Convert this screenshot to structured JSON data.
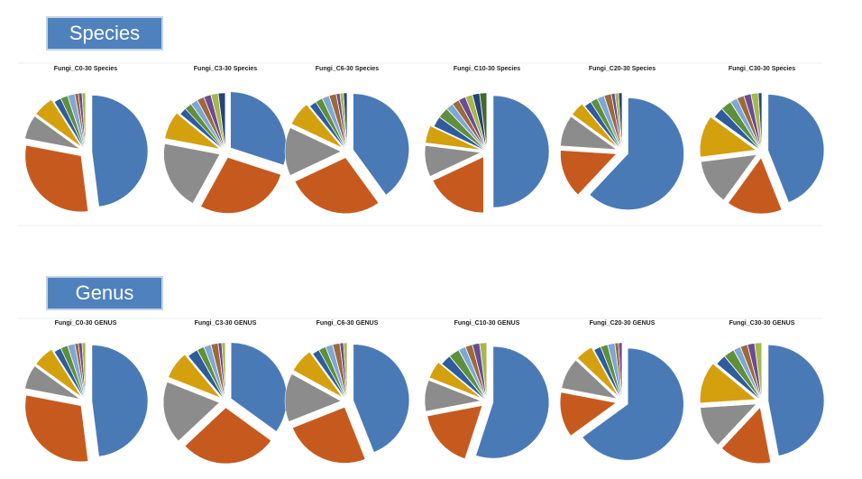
{
  "section_labels": [
    "Species",
    "Genus"
  ],
  "chart_data": [
    {
      "type": "pie",
      "title": "Fungi_C0-30 Species",
      "values": [
        48,
        30,
        7,
        6,
        2,
        2,
        2,
        1,
        1,
        1
      ],
      "colors": [
        "#4a7ab6",
        "#c65a1e",
        "#8c8c8c",
        "#d4a00e",
        "#2e5c9c",
        "#5f8f3a",
        "#7fa7d6",
        "#9c6a3a",
        "#6a4c93",
        "#a5b84b"
      ]
    },
    {
      "type": "pie",
      "title": "Fungi_C3-30 Species",
      "values": [
        30,
        28,
        20,
        8,
        2,
        2,
        2,
        2,
        2,
        2,
        2
      ],
      "colors": [
        "#4a7ab6",
        "#c65a1e",
        "#8c8c8c",
        "#d4a00e",
        "#2e5c9c",
        "#5f8f3a",
        "#7fa7d6",
        "#9c6a3a",
        "#6a4c93",
        "#a5b84b",
        "#264478"
      ]
    },
    {
      "type": "pie",
      "title": "Fungi_C6-30 Species",
      "values": [
        40,
        28,
        14,
        7,
        2,
        2,
        2,
        2,
        1,
        1,
        1
      ],
      "colors": [
        "#4a7ab6",
        "#c65a1e",
        "#8c8c8c",
        "#d4a00e",
        "#2e5c9c",
        "#5f8f3a",
        "#7fa7d6",
        "#9c6a3a",
        "#6a4c93",
        "#a5b84b",
        "#264478"
      ]
    },
    {
      "type": "pie",
      "title": "Fungi_C10-30 Species",
      "values": [
        50,
        18,
        9,
        5,
        3,
        3,
        2,
        2,
        2,
        2,
        2,
        2
      ],
      "colors": [
        "#4a7ab6",
        "#c65a1e",
        "#8c8c8c",
        "#d4a00e",
        "#2e5c9c",
        "#5f8f3a",
        "#7fa7d6",
        "#9c6a3a",
        "#6a4c93",
        "#a5b84b",
        "#264478",
        "#43682b"
      ]
    },
    {
      "type": "pie",
      "title": "Fungi_C20-30 Species",
      "values": [
        62,
        14,
        9,
        4,
        2,
        2,
        2,
        2,
        1,
        1,
        1
      ],
      "colors": [
        "#4a7ab6",
        "#c65a1e",
        "#8c8c8c",
        "#d4a00e",
        "#2e5c9c",
        "#5f8f3a",
        "#7fa7d6",
        "#9c6a3a",
        "#6a4c93",
        "#a5b84b",
        "#264478"
      ]
    },
    {
      "type": "pie",
      "title": "Fungi_C30-30 Species",
      "values": [
        44,
        16,
        13,
        12,
        3,
        3,
        2,
        2,
        2,
        2,
        1
      ],
      "colors": [
        "#4a7ab6",
        "#c65a1e",
        "#8c8c8c",
        "#d4a00e",
        "#2e5c9c",
        "#5f8f3a",
        "#7fa7d6",
        "#9c6a3a",
        "#6a4c93",
        "#a5b84b",
        "#264478"
      ]
    },
    {
      "type": "pie",
      "title": "Fungi_C0-30 GENUS",
      "values": [
        48,
        30,
        7,
        6,
        2,
        2,
        2,
        1,
        1,
        1
      ],
      "colors": [
        "#4a7ab6",
        "#c65a1e",
        "#8c8c8c",
        "#d4a00e",
        "#2e5c9c",
        "#5f8f3a",
        "#7fa7d6",
        "#9c6a3a",
        "#6a4c93",
        "#a5b84b"
      ]
    },
    {
      "type": "pie",
      "title": "Fungi_C3-30 GENUS",
      "values": [
        35,
        28,
        18,
        8,
        3,
        2,
        2,
        2,
        1,
        1
      ],
      "colors": [
        "#4a7ab6",
        "#c65a1e",
        "#8c8c8c",
        "#d4a00e",
        "#2e5c9c",
        "#5f8f3a",
        "#7fa7d6",
        "#9c6a3a",
        "#6a4c93",
        "#a5b84b"
      ]
    },
    {
      "type": "pie",
      "title": "Fungi_C6-30 GENUS",
      "values": [
        44,
        25,
        14,
        7,
        2,
        2,
        2,
        2,
        1,
        1
      ],
      "colors": [
        "#4a7ab6",
        "#c65a1e",
        "#8c8c8c",
        "#d4a00e",
        "#2e5c9c",
        "#5f8f3a",
        "#7fa7d6",
        "#9c6a3a",
        "#6a4c93",
        "#a5b84b"
      ]
    },
    {
      "type": "pie",
      "title": "Fungi_C10-30 GENUS",
      "values": [
        55,
        17,
        9,
        5,
        3,
        3,
        2,
        2,
        2,
        2
      ],
      "colors": [
        "#4a7ab6",
        "#c65a1e",
        "#8c8c8c",
        "#d4a00e",
        "#2e5c9c",
        "#5f8f3a",
        "#7fa7d6",
        "#9c6a3a",
        "#6a4c93",
        "#a5b84b"
      ]
    },
    {
      "type": "pie",
      "title": "Fungi_C20-30 GENUS",
      "values": [
        65,
        13,
        9,
        5,
        2,
        2,
        2,
        1,
        1
      ],
      "colors": [
        "#4a7ab6",
        "#c65a1e",
        "#8c8c8c",
        "#d4a00e",
        "#2e5c9c",
        "#5f8f3a",
        "#7fa7d6",
        "#9c6a3a",
        "#6a4c93"
      ]
    },
    {
      "type": "pie",
      "title": "Fungi_C30-30 GENUS",
      "values": [
        47,
        15,
        12,
        12,
        3,
        3,
        2,
        2,
        2,
        2
      ],
      "colors": [
        "#4a7ab6",
        "#c65a1e",
        "#8c8c8c",
        "#d4a00e",
        "#2e5c9c",
        "#5f8f3a",
        "#7fa7d6",
        "#9c6a3a",
        "#6a4c93",
        "#a5b84b"
      ]
    }
  ]
}
